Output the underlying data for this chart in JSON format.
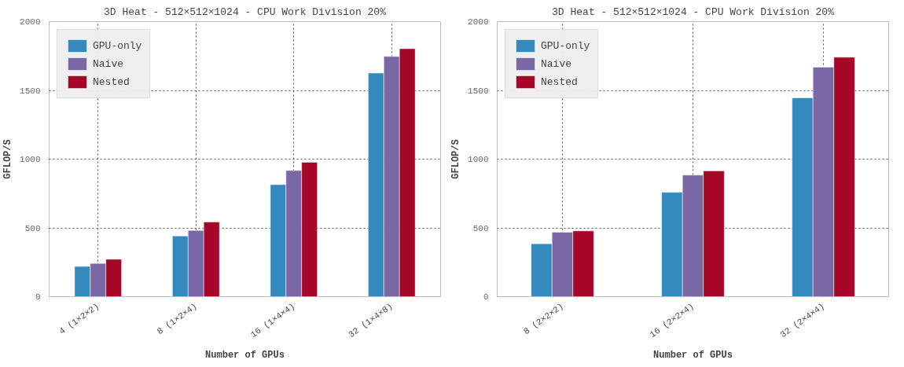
{
  "chart_data": [
    {
      "type": "bar",
      "title": "3D Heat - 512×512×1024 - CPU Work Division 20%",
      "xlabel": "Number of GPUs",
      "ylabel": "GFLOP/S",
      "categories": [
        "4 (1×2×2)",
        "8 (1×2×4)",
        "16 (1×4×4)",
        "32 (1×4×8)"
      ],
      "series": [
        {
          "name": "GPU-only",
          "color": "#348abd",
          "values": [
            220,
            441,
            815,
            1626
          ]
        },
        {
          "name": "Naive",
          "color": "#7a68a6",
          "values": [
            242,
            482,
            917,
            1747
          ]
        },
        {
          "name": "Nested",
          "color": "#a60628",
          "values": [
            272,
            543,
            977,
            1803
          ]
        }
      ],
      "ylim": [
        0,
        2000
      ],
      "yticks": [
        0,
        500,
        1000,
        1500,
        2000
      ],
      "grid": true,
      "legend": "top left"
    },
    {
      "type": "bar",
      "title": "3D Heat - 512×512×1024 - CPU Work Division 20%",
      "xlabel": "Number of GPUs",
      "ylabel": "GFLOP/S",
      "categories": [
        "8 (2×2×2)",
        "16 (2×2×4)",
        "32 (2×4×4)"
      ],
      "series": [
        {
          "name": "GPU-only",
          "color": "#348abd",
          "values": [
            385,
            759,
            1446
          ]
        },
        {
          "name": "Naive",
          "color": "#7a68a6",
          "values": [
            469,
            884,
            1669
          ]
        },
        {
          "name": "Nested",
          "color": "#a60628",
          "values": [
            478,
            915,
            1741
          ]
        }
      ],
      "ylim": [
        0,
        2000
      ],
      "yticks": [
        0,
        500,
        1000,
        1500,
        2000
      ],
      "grid": true,
      "legend": "top left"
    }
  ]
}
